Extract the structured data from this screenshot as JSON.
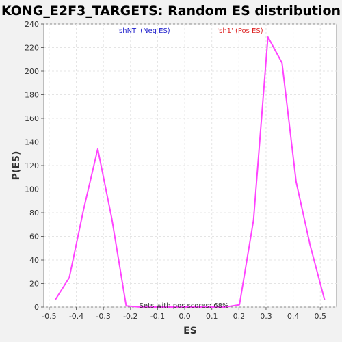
{
  "chart_data": {
    "type": "line",
    "title": "KONG_E2F3_TARGETS: Random ES distribution",
    "xlabel": "ES",
    "ylabel": "P(ES)",
    "xlim": [
      -0.52,
      0.56
    ],
    "ylim": [
      0,
      240
    ],
    "x_ticks": [
      -0.5,
      -0.4,
      -0.3,
      -0.2,
      -0.1,
      0.0,
      0.1,
      0.2,
      0.3,
      0.4,
      0.5
    ],
    "x_tick_labels": [
      "-0.5",
      "-0.4",
      "-0.3",
      "-0.2",
      "-0.1",
      "0.0",
      "0.1",
      "0.2",
      "0.3",
      "0.4",
      "0.5"
    ],
    "y_ticks": [
      0,
      20,
      40,
      60,
      80,
      100,
      120,
      140,
      160,
      180,
      200,
      220,
      240
    ],
    "y_tick_labels": [
      "0",
      "20",
      "40",
      "60",
      "80",
      "100",
      "120",
      "140",
      "160",
      "180",
      "200",
      "220",
      "240"
    ],
    "grid": true,
    "series": [
      {
        "color": "#ff44ff",
        "x": [
          -0.478,
          -0.426,
          -0.373,
          -0.321,
          -0.269,
          -0.216,
          -0.164,
          -0.112,
          -0.059,
          -0.007,
          0.045,
          0.097,
          0.15,
          0.202,
          0.254,
          0.307,
          0.359,
          0.411,
          0.463,
          0.516
        ],
        "y": [
          6,
          25,
          83,
          134,
          75,
          1,
          0,
          0,
          0,
          0,
          0,
          0,
          0,
          2,
          74,
          229,
          207,
          106,
          52,
          6
        ]
      }
    ],
    "annotations": {
      "neg_label": "'shNT' (Neg ES)",
      "pos_label": "'sh1' (Pos ES)",
      "footer": "Sets with pos scores: 68%"
    },
    "colors": {
      "neg_label": "#2222cc",
      "pos_label": "#dd2222",
      "background": "#ffffff",
      "page": "#f2f2f2"
    }
  }
}
